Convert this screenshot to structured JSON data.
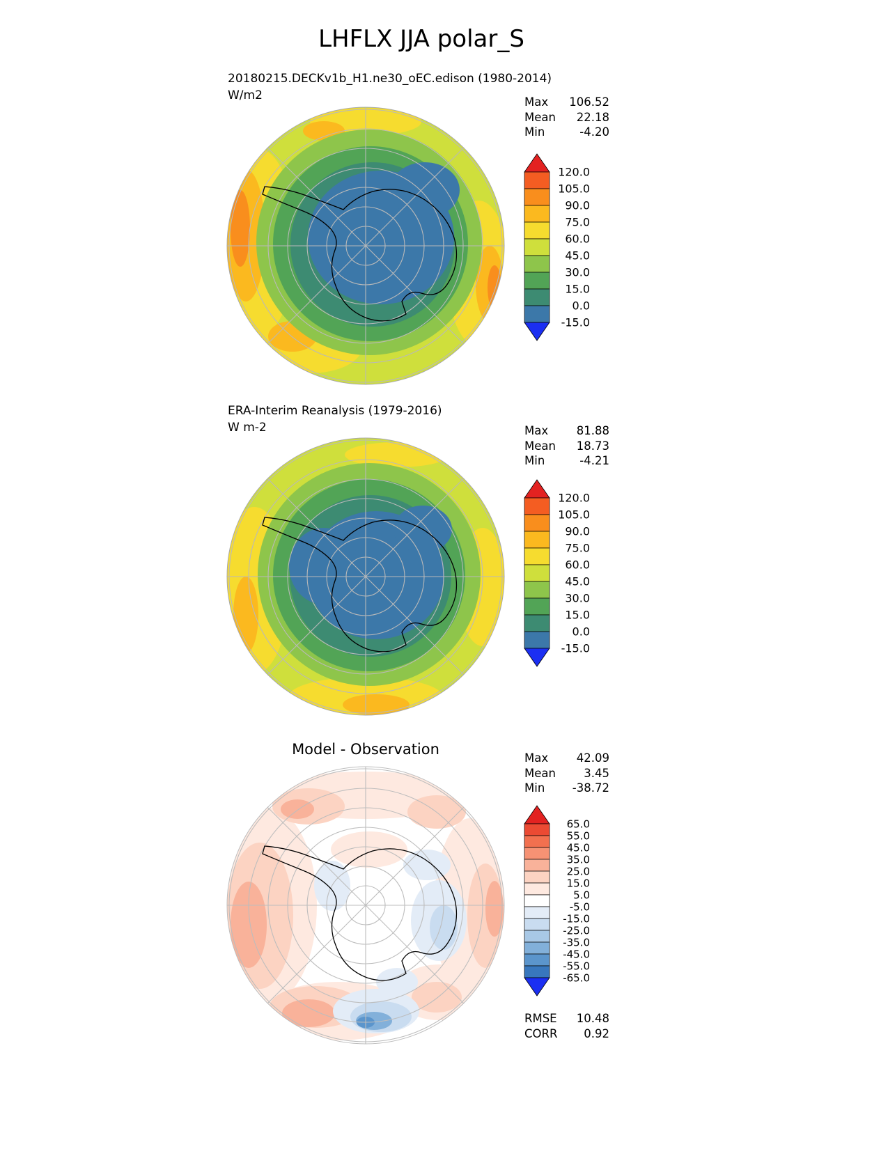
{
  "page_title": "LHFLX JJA polar_S",
  "panels": [
    {
      "id": "model",
      "subtitle": "20180215.DECKv1b_H1.ne30_oEC.edison (1980-2014)",
      "units": "W/m2",
      "stats": {
        "max_label": "Max",
        "max": "106.52",
        "mean_label": "Mean",
        "mean": "22.18",
        "min_label": "Min",
        "min": "-4.20"
      },
      "colorbar": {
        "labels": [
          "120.0",
          "105.0",
          "90.0",
          "75.0",
          "60.0",
          "45.0",
          "30.0",
          "15.0",
          "0.0",
          "-15.0"
        ],
        "colors": [
          "#e32221",
          "#f45d22",
          "#f98e1d",
          "#fbb91f",
          "#f6dc2f",
          "#cfdf3c",
          "#8ec54b",
          "#52a456",
          "#3d8b72",
          "#3c78a9",
          "#1b2ff2"
        ]
      }
    },
    {
      "id": "obs",
      "subtitle": "ERA-Interim Reanalysis (1979-2016)",
      "units": "W m-2",
      "stats": {
        "max_label": "Max",
        "max": "81.88",
        "mean_label": "Mean",
        "mean": "18.73",
        "min_label": "Min",
        "min": "-4.21"
      },
      "colorbar": {
        "labels": [
          "120.0",
          "105.0",
          "90.0",
          "75.0",
          "60.0",
          "45.0",
          "30.0",
          "15.0",
          "0.0",
          "-15.0"
        ],
        "colors": [
          "#e32221",
          "#f45d22",
          "#f98e1d",
          "#fbb91f",
          "#f6dc2f",
          "#cfdf3c",
          "#8ec54b",
          "#52a456",
          "#3d8b72",
          "#3c78a9",
          "#1b2ff2"
        ]
      }
    },
    {
      "id": "diff",
      "subtitle": "Model - Observation",
      "stats": {
        "max_label": "Max",
        "max": "42.09",
        "mean_label": "Mean",
        "mean": "3.45",
        "min_label": "Min",
        "min": "-38.72"
      },
      "colorbar": {
        "labels": [
          "65.0",
          "55.0",
          "45.0",
          "35.0",
          "25.0",
          "15.0",
          "5.0",
          "-5.0",
          "-15.0",
          "-25.0",
          "-35.0",
          "-45.0",
          "-55.0",
          "-65.0"
        ],
        "colors": [
          "#e32221",
          "#eb4a33",
          "#f2704f",
          "#f69274",
          "#f9b29a",
          "#fcd3c2",
          "#fee9e0",
          "#ffffff",
          "#e3ecf7",
          "#c9dcf0",
          "#a8c8e6",
          "#82b0da",
          "#5b95cc",
          "#3877bd",
          "#1b2ff2"
        ]
      },
      "metrics": {
        "rmse_label": "RMSE",
        "rmse": "10.48",
        "corr_label": "CORR",
        "corr": "0.92"
      }
    }
  ],
  "chart_data": [
    {
      "type": "heatmap",
      "title": "20180215.DECKv1b_H1.ne30_oEC.edison (1980-2014)",
      "variable": "LHFLX",
      "season": "JJA",
      "projection": "south-polar-stereographic",
      "units": "W/m2",
      "stats": {
        "max": 106.52,
        "mean": 22.18,
        "min": -4.2
      },
      "contour_levels": [
        -15.0,
        0.0,
        15.0,
        30.0,
        45.0,
        60.0,
        75.0,
        90.0,
        105.0,
        120.0
      ],
      "palette": [
        "#e32221",
        "#f45d22",
        "#f98e1d",
        "#fbb91f",
        "#f6dc2f",
        "#cfdf3c",
        "#8ec54b",
        "#52a456",
        "#3d8b72",
        "#3c78a9",
        "#1b2ff2"
      ],
      "legend_position": "right"
    },
    {
      "type": "heatmap",
      "title": "ERA-Interim Reanalysis (1979-2016)",
      "variable": "LHFLX",
      "season": "JJA",
      "projection": "south-polar-stereographic",
      "units": "W m-2",
      "stats": {
        "max": 81.88,
        "mean": 18.73,
        "min": -4.21
      },
      "contour_levels": [
        -15.0,
        0.0,
        15.0,
        30.0,
        45.0,
        60.0,
        75.0,
        90.0,
        105.0,
        120.0
      ],
      "palette": [
        "#e32221",
        "#f45d22",
        "#f98e1d",
        "#fbb91f",
        "#f6dc2f",
        "#cfdf3c",
        "#8ec54b",
        "#52a456",
        "#3d8b72",
        "#3c78a9",
        "#1b2ff2"
      ],
      "legend_position": "right"
    },
    {
      "type": "heatmap",
      "title": "Model - Observation",
      "variable": "LHFLX difference",
      "season": "JJA",
      "projection": "south-polar-stereographic",
      "units": "W/m2",
      "stats": {
        "max": 42.09,
        "mean": 3.45,
        "min": -38.72
      },
      "rmse": 10.48,
      "corr": 0.92,
      "contour_levels": [
        -65.0,
        -55.0,
        -45.0,
        -35.0,
        -25.0,
        -15.0,
        -5.0,
        5.0,
        15.0,
        25.0,
        35.0,
        45.0,
        55.0,
        65.0
      ],
      "palette": [
        "#e32221",
        "#eb4a33",
        "#f2704f",
        "#f69274",
        "#f9b29a",
        "#fcd3c2",
        "#fee9e0",
        "#ffffff",
        "#e3ecf7",
        "#c9dcf0",
        "#a8c8e6",
        "#82b0da",
        "#5b95cc",
        "#3877bd",
        "#1b2ff2"
      ],
      "legend_position": "right"
    }
  ]
}
